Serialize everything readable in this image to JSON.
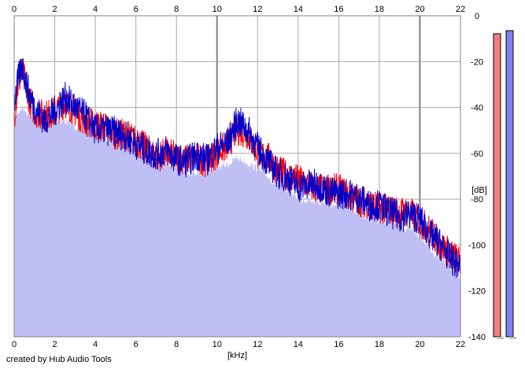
{
  "credit": "created by Hub Audio Tools",
  "colors": {
    "background": "#ffffff",
    "fill": "#bfbff5",
    "grid": "#a8a8a8",
    "grid_major": "#808080",
    "left_channel": "#ff0000",
    "right_channel": "#0000cc",
    "meter_left": "#f08080",
    "meter_right": "#8080f0"
  },
  "chart_data": {
    "type": "line",
    "title": "",
    "xlabel": "[kHz]",
    "ylabel": "[dB]",
    "xlim": [
      0,
      22
    ],
    "ylim": [
      -140,
      0
    ],
    "x_ticks": [
      0,
      2,
      4,
      6,
      8,
      10,
      12,
      14,
      16,
      18,
      20,
      22
    ],
    "y_ticks": [
      0,
      -20,
      -40,
      -60,
      -80,
      -100,
      -120,
      -140
    ],
    "grid": true,
    "series": [
      {
        "color": "#ff0000",
        "x": [
          0,
          0.2,
          0.4,
          0.6,
          0.8,
          1,
          1.5,
          2,
          2.5,
          3,
          3.5,
          4,
          4.5,
          5,
          5.5,
          6,
          6.5,
          7,
          7.5,
          8,
          8.5,
          9,
          9.5,
          10,
          10.5,
          11,
          11.5,
          12,
          12.5,
          13,
          13.5,
          14,
          14.5,
          15,
          15.5,
          16,
          16.5,
          17,
          17.5,
          18,
          18.5,
          19,
          19.5,
          20,
          20.5,
          21,
          21.5,
          22
        ],
        "values": [
          -42,
          -28,
          -22,
          -30,
          -36,
          -40,
          -42,
          -40,
          -36,
          -40,
          -44,
          -46,
          -47,
          -50,
          -50,
          -53,
          -56,
          -60,
          -58,
          -60,
          -61,
          -60,
          -62,
          -58,
          -55,
          -48,
          -50,
          -58,
          -60,
          -66,
          -68,
          -70,
          -72,
          -74,
          -74,
          -74,
          -77,
          -79,
          -80,
          -82,
          -83,
          -84,
          -84,
          -88,
          -92,
          -98,
          -102,
          -106
        ]
      },
      {
        "color": "#0000cc",
        "x": [
          0,
          0.2,
          0.4,
          0.6,
          0.8,
          1,
          1.5,
          2,
          2.5,
          3,
          3.5,
          4,
          4.5,
          5,
          5.5,
          6,
          6.5,
          7,
          7.5,
          8,
          8.5,
          9,
          9.5,
          10,
          10.5,
          11,
          11.5,
          12,
          12.5,
          13,
          13.5,
          14,
          14.5,
          15,
          15.5,
          16,
          16.5,
          17,
          17.5,
          18,
          18.5,
          19,
          19.5,
          20,
          20.5,
          21,
          21.5,
          22
        ],
        "values": [
          -36,
          -26,
          -20,
          -28,
          -34,
          -38,
          -44,
          -40,
          -34,
          -38,
          -42,
          -48,
          -48,
          -49,
          -51,
          -54,
          -57,
          -59,
          -57,
          -61,
          -62,
          -59,
          -61,
          -56,
          -54,
          -44,
          -48,
          -56,
          -62,
          -67,
          -69,
          -73,
          -72,
          -72,
          -75,
          -76,
          -76,
          -78,
          -81,
          -81,
          -84,
          -86,
          -85,
          -87,
          -94,
          -98,
          -104,
          -108
        ]
      }
    ],
    "fill_floor": [
      -42,
      -40,
      -38,
      -40,
      -41,
      -42,
      -44,
      -44,
      -44,
      -46,
      -48,
      -50,
      -51,
      -52,
      -54,
      -57,
      -59,
      -62,
      -63,
      -64,
      -66,
      -66,
      -66,
      -64,
      -63,
      -60,
      -62,
      -65,
      -68,
      -72,
      -74,
      -78,
      -78,
      -79,
      -80,
      -81,
      -82,
      -84,
      -86,
      -87,
      -88,
      -90,
      -91,
      -94,
      -100,
      -104,
      -108,
      -112
    ]
  },
  "meters": {
    "left_level": 0.97,
    "right_level": 0.98
  }
}
